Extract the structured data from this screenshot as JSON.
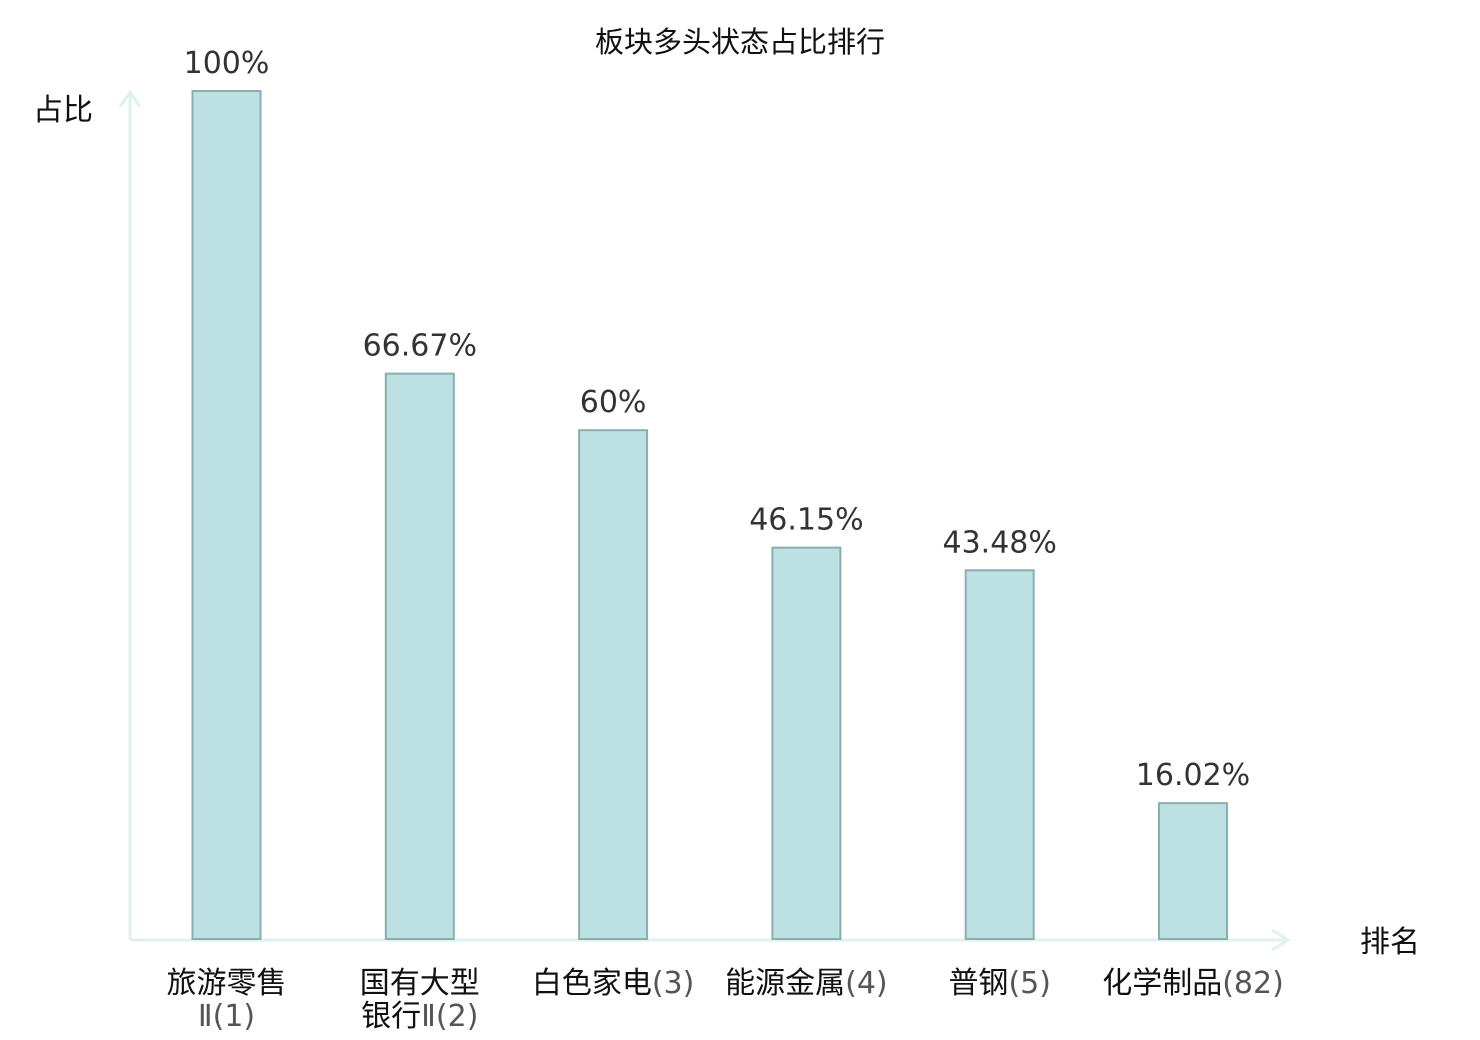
{
  "chart_data": {
    "type": "bar",
    "title": "板块多头状态占比排行",
    "ylabel": "占比",
    "xlabel": "排名",
    "ylim": [
      0,
      100
    ],
    "grid": false,
    "categories": [
      {
        "lines": [
          {
            "name": "旅游零售",
            "rank": ""
          },
          {
            "name": "",
            "rank": "Ⅱ(1)"
          }
        ],
        "highlight": false
      },
      {
        "lines": [
          {
            "name": "国有大型",
            "rank": ""
          },
          {
            "name": "银行",
            "rank": "Ⅱ(2)"
          }
        ],
        "highlight": false
      },
      {
        "lines": [
          {
            "name": "白色家电",
            "rank": "(3)"
          }
        ],
        "highlight": false
      },
      {
        "lines": [
          {
            "name": "能源金属",
            "rank": "(4)"
          }
        ],
        "highlight": false
      },
      {
        "lines": [
          {
            "name": "普钢",
            "rank": "(5)"
          }
        ],
        "highlight": false
      },
      {
        "lines": [
          {
            "name": "化学制品",
            "rank": "(82)"
          }
        ],
        "highlight": true
      }
    ],
    "values": [
      100,
      66.67,
      60,
      46.15,
      43.48,
      16.02
    ],
    "value_labels": [
      "100%",
      "66.67%",
      "60%",
      "46.15%",
      "43.48%",
      "16.02%"
    ]
  },
  "colors": {
    "bar_fill": "#bde1e3",
    "bar_stroke": "#8aaeb0",
    "axis": "#dff2ef",
    "highlight": "#e8141b",
    "text": "#111111"
  }
}
